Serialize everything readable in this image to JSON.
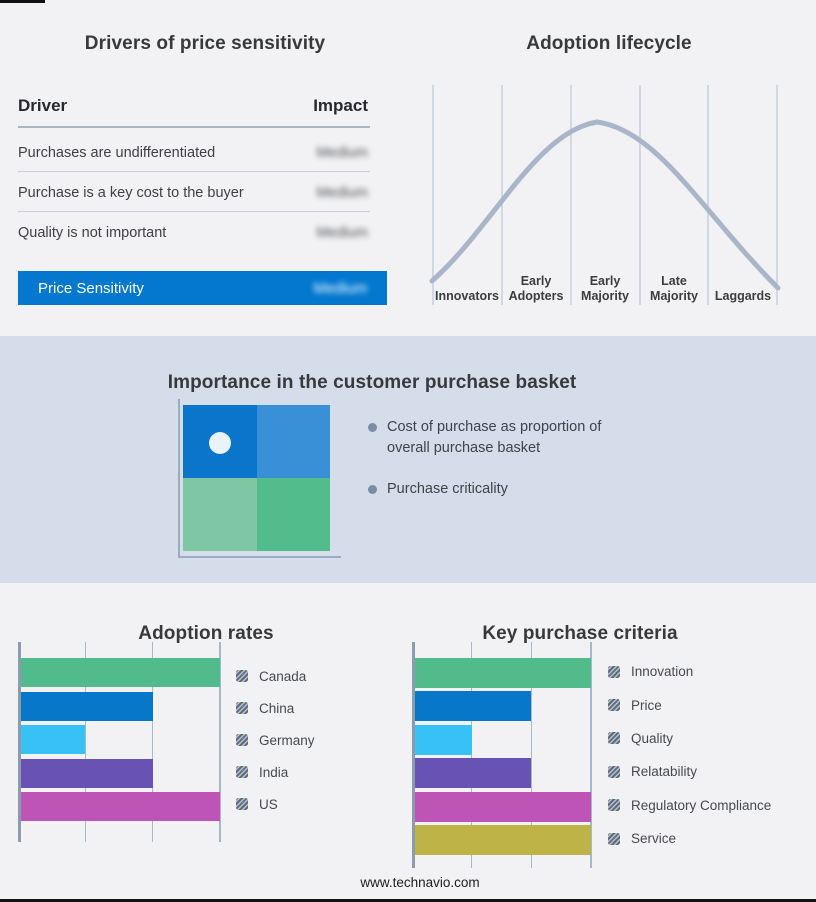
{
  "colors": {
    "page_bg": "#f2f2f4",
    "band_bg": "#d4dde9",
    "accent_blue": "#0478cf",
    "curve": "#a9b6c9",
    "separator_line": "#b3bfd2",
    "axis": "#8b9cb1",
    "gridline": "#a9b7ca",
    "legend_marker": "#5d6d7f"
  },
  "drivers": {
    "title": "Drivers of price sensitivity",
    "col_driver": "Driver",
    "col_impact": "Impact",
    "impact_values_blurred": true,
    "rows": [
      {
        "driver": "Purchases are undifferentiated",
        "impact": "Medium"
      },
      {
        "driver": "Purchase is a key cost to the buyer",
        "impact": "Medium"
      },
      {
        "driver": "Quality is not important",
        "impact": "Medium"
      }
    ],
    "highlight": {
      "driver": "Price Sensitivity",
      "impact": "Medium"
    }
  },
  "basket": {
    "title": "Importance in the customer purchase basket",
    "bullets": [
      "Cost of purchase as proportion of overall purchase basket",
      "Purchase criticality"
    ],
    "quadrant_colors": [
      "#0b74cb",
      "#3990d6",
      "#7fc6a4",
      "#52bc8c"
    ]
  },
  "footer": {
    "site": "www.technavio.com"
  },
  "chart_data": [
    {
      "id": "adoption_lifecycle",
      "type": "line",
      "title": "Adoption lifecycle",
      "x_categories": [
        "Innovators",
        "Early Adopters",
        "Early Majority",
        "Late Majority",
        "Laggards"
      ],
      "series": [
        {
          "name": "adoption_curve",
          "values_relative": [
            0.05,
            0.55,
            1.0,
            0.6,
            0.05
          ]
        }
      ],
      "shape": "bell curve peaking over Early Majority",
      "grid": "vertical category separators only",
      "legend": "none",
      "axis_tick_labels": "none shown"
    },
    {
      "id": "adoption_rates",
      "type": "bar",
      "orientation": "horizontal",
      "title": "Adoption rates",
      "categories": [
        "Canada",
        "China",
        "Germany",
        "India",
        "US"
      ],
      "values_pct_of_axis": [
        100,
        66.7,
        33.3,
        66.7,
        100
      ],
      "colors": [
        "#52bb8b",
        "#0778c9",
        "#38c1f5",
        "#6853b5",
        "#bd54b6"
      ],
      "xlim": [
        0,
        100
      ],
      "gridlines_at_pct": [
        33.3,
        66.7,
        100
      ],
      "axis_tick_labels": "none shown",
      "legend_position": "right"
    },
    {
      "id": "key_purchase_criteria",
      "type": "bar",
      "orientation": "horizontal",
      "title": "Key purchase criteria",
      "categories": [
        "Innovation",
        "Price",
        "Quality",
        "Relatability",
        "Regulatory Compliance",
        "Service"
      ],
      "values_pct_of_axis": [
        100,
        66.7,
        33.3,
        66.7,
        100,
        100
      ],
      "colors": [
        "#52bb8b",
        "#0778c9",
        "#38c1f5",
        "#6853b5",
        "#bd54b6",
        "#bdb347"
      ],
      "xlim": [
        0,
        100
      ],
      "gridlines_at_pct": [
        33.3,
        66.7,
        100
      ],
      "axis_tick_labels": "none shown",
      "legend_position": "right"
    }
  ]
}
